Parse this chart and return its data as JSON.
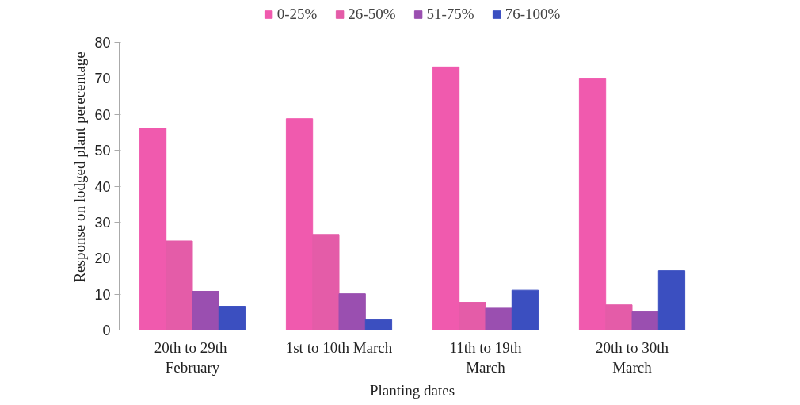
{
  "chart_data": {
    "type": "bar",
    "xlabel": "Planting dates",
    "ylabel": "Response on lodged plant perecentage",
    "categories": [
      "20th  to 29th\nFebruary",
      "1st to 10th March",
      "11th to 19th\nMarch",
      "20th to 30th\nMarch"
    ],
    "series": [
      {
        "name": "0-25%",
        "color": "#f05aae",
        "values": [
          56.1,
          58.8,
          73.2,
          69.9
        ]
      },
      {
        "name": "26-50%",
        "color": "#e45ca8",
        "values": [
          24.8,
          26.6,
          7.7,
          7.0
        ]
      },
      {
        "name": "51-75%",
        "color": "#9a4fb0",
        "values": [
          10.8,
          10.1,
          6.3,
          5.1
        ]
      },
      {
        "name": "76-100%",
        "color": "#3b4fc0",
        "values": [
          6.6,
          2.9,
          11.1,
          16.5
        ]
      }
    ],
    "ylim": [
      0,
      80
    ],
    "yticks": [
      0,
      10,
      20,
      30,
      40,
      50,
      60,
      70,
      80
    ],
    "grid": false,
    "legend": "top"
  }
}
